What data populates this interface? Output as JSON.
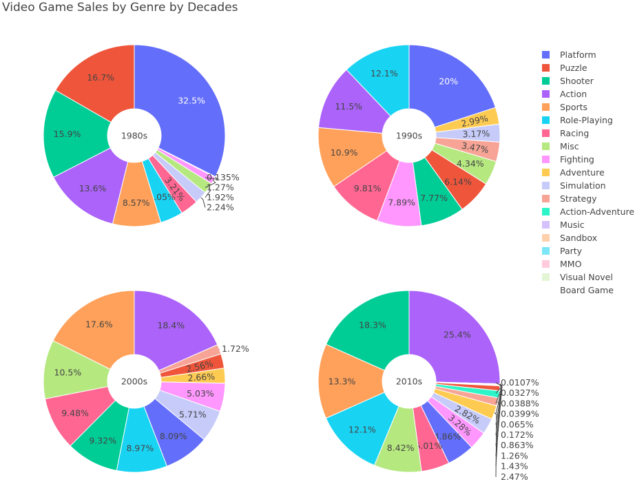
{
  "chart_data": {
    "type": "pie",
    "title": "Video Game Sales by Genre by Decades",
    "legend_position": "right",
    "colors": {
      "Platform": "#636efa",
      "Puzzle": "#EF553B",
      "Shooter": "#00cc96",
      "Action": "#ab63fa",
      "Sports": "#FFA15A",
      "Role-Playing": "#19d3f3",
      "Racing": "#FF6692",
      "Misc": "#B6E880",
      "Fighting": "#FF97FF",
      "Adventure": "#FECB52",
      "Simulation": "#c6cbf9",
      "Strategy": "#f7a496",
      "Action-Adventure": "#2cf5c8",
      "Music": "#d5c1fd",
      "Sandbox": "#ffd0ac",
      "Party": "#7ae6f8",
      "MMO": "#ffcadb",
      "Visual Novel": "#e2f6d5",
      "Board Game": "#ffffff"
    },
    "legend": [
      "Platform",
      "Puzzle",
      "Shooter",
      "Action",
      "Sports",
      "Role-Playing",
      "Racing",
      "Misc",
      "Fighting",
      "Adventure",
      "Simulation",
      "Strategy",
      "Action-Adventure",
      "Music",
      "Sandbox",
      "Party",
      "MMO",
      "Visual Novel",
      "Board Game"
    ],
    "pies": [
      {
        "center_label": "1980s",
        "slices": [
          {
            "genre": "Platform",
            "value": 32.5
          },
          {
            "genre": "Adventure",
            "value": 0.135
          },
          {
            "genre": "Fighting",
            "value": 1.27
          },
          {
            "genre": "Misc",
            "value": 1.92
          },
          {
            "genre": "Simulation",
            "value": 2.24
          },
          {
            "genre": "Racing",
            "value": 3.21
          },
          {
            "genre": "Role-Playing",
            "value": 4.05
          },
          {
            "genre": "Sports",
            "value": 8.57
          },
          {
            "genre": "Action",
            "value": 13.6
          },
          {
            "genre": "Shooter",
            "value": 15.9
          },
          {
            "genre": "Puzzle",
            "value": 16.7
          }
        ]
      },
      {
        "center_label": "1990s",
        "slices": [
          {
            "genre": "Platform",
            "value": 20
          },
          {
            "genre": "Adventure",
            "value": 2.99
          },
          {
            "genre": "Simulation",
            "value": 3.17
          },
          {
            "genre": "Strategy",
            "value": 3.47
          },
          {
            "genre": "Misc",
            "value": 4.34
          },
          {
            "genre": "Puzzle",
            "value": 6.14
          },
          {
            "genre": "Shooter",
            "value": 7.77
          },
          {
            "genre": "Fighting",
            "value": 7.89
          },
          {
            "genre": "Racing",
            "value": 9.81
          },
          {
            "genre": "Sports",
            "value": 10.9
          },
          {
            "genre": "Action",
            "value": 11.5
          },
          {
            "genre": "Role-Playing",
            "value": 12.1
          }
        ]
      },
      {
        "center_label": "2000s",
        "slices": [
          {
            "genre": "Action",
            "value": 18.4
          },
          {
            "genre": "Strategy",
            "value": 1.72
          },
          {
            "genre": "Puzzle",
            "value": 2.56
          },
          {
            "genre": "Adventure",
            "value": 2.66
          },
          {
            "genre": "Fighting",
            "value": 5.03
          },
          {
            "genre": "Simulation",
            "value": 5.71
          },
          {
            "genre": "Platform",
            "value": 8.09
          },
          {
            "genre": "Role-Playing",
            "value": 8.97
          },
          {
            "genre": "Shooter",
            "value": 9.32
          },
          {
            "genre": "Racing",
            "value": 9.48
          },
          {
            "genre": "Misc",
            "value": 10.5
          },
          {
            "genre": "Sports",
            "value": 17.6
          }
        ]
      },
      {
        "center_label": "2010s",
        "slices": [
          {
            "genre": "Action",
            "value": 25.4
          },
          {
            "genre": "Visual Novel",
            "value": 0.0107
          },
          {
            "genre": "Music",
            "value": 0.0327
          },
          {
            "genre": "Board Game",
            "value": 0.0388
          },
          {
            "genre": "MMO",
            "value": 0.0399
          },
          {
            "genre": "Party",
            "value": 0.065
          },
          {
            "genre": "Sandbox",
            "value": 0.172
          },
          {
            "genre": "Puzzle",
            "value": 0.863
          },
          {
            "genre": "Action-Adventure",
            "value": 1.26
          },
          {
            "genre": "Strategy",
            "value": 1.43
          },
          {
            "genre": "Adventure",
            "value": 2.47
          },
          {
            "genre": "Simulation",
            "value": 2.82
          },
          {
            "genre": "Fighting",
            "value": 3.28
          },
          {
            "genre": "Platform",
            "value": 4.86
          },
          {
            "genre": "Racing",
            "value": 5.01
          },
          {
            "genre": "Misc",
            "value": 8.42
          },
          {
            "genre": "Role-Playing",
            "value": 12.1
          },
          {
            "genre": "Sports",
            "value": 13.3
          },
          {
            "genre": "Shooter",
            "value": 18.3
          }
        ]
      }
    ]
  }
}
